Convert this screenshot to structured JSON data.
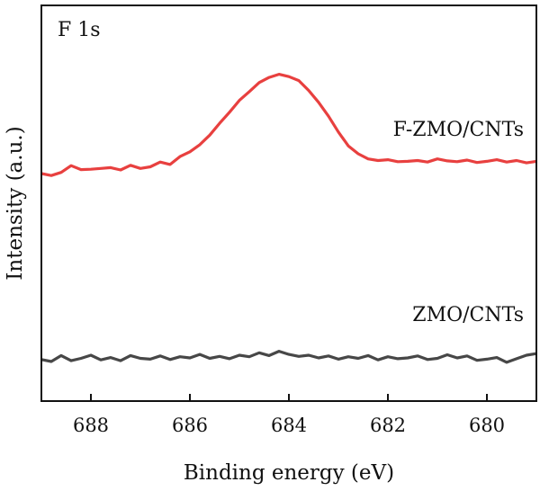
{
  "chart_data": {
    "type": "line",
    "title": "",
    "panel_label": "F 1s",
    "xlabel": "Binding energy (eV)",
    "ylabel": "Intensity (a.u.)",
    "xlim": [
      689.0,
      679.0
    ],
    "x_reversed": true,
    "y_ticks_shown": false,
    "xticks": [
      688,
      686,
      684,
      682,
      680
    ],
    "xtick_labels": [
      "688",
      "686",
      "684",
      "682",
      "680"
    ],
    "ylim": [
      0,
      100
    ],
    "grid": false,
    "series": [
      {
        "name": "F-ZMO/CNTs",
        "color": "#e8403f",
        "x": [
          689.0,
          688.8,
          688.6,
          688.4,
          688.2,
          688.0,
          687.8,
          687.6,
          687.4,
          687.2,
          687.0,
          686.8,
          686.6,
          686.4,
          686.2,
          686.0,
          685.8,
          685.6,
          685.4,
          685.2,
          685.0,
          684.8,
          684.6,
          684.4,
          684.2,
          684.0,
          683.8,
          683.6,
          683.4,
          683.2,
          683.0,
          682.8,
          682.6,
          682.4,
          682.2,
          682.0,
          681.8,
          681.6,
          681.4,
          681.2,
          681.0,
          680.8,
          680.6,
          680.4,
          680.2,
          680.0,
          679.8,
          679.6,
          679.4,
          679.2,
          679.0
        ],
        "values": [
          57.5,
          57.0,
          57.8,
          59.5,
          58.5,
          58.6,
          58.8,
          59.0,
          58.4,
          59.6,
          58.8,
          59.2,
          60.4,
          59.8,
          61.8,
          63.0,
          64.8,
          67.2,
          70.2,
          73.0,
          76.0,
          78.2,
          80.5,
          81.8,
          82.6,
          82.0,
          81.0,
          78.5,
          75.5,
          72.0,
          68.0,
          64.5,
          62.5,
          61.2,
          60.8,
          61.0,
          60.5,
          60.6,
          60.8,
          60.4,
          61.2,
          60.7,
          60.5,
          60.9,
          60.3,
          60.6,
          61.0,
          60.4,
          60.8,
          60.2,
          60.6
        ]
      },
      {
        "name": "ZMO/CNTs",
        "color": "#474747",
        "x": [
          689.0,
          688.8,
          688.6,
          688.4,
          688.2,
          688.0,
          687.8,
          687.6,
          687.4,
          687.2,
          687.0,
          686.8,
          686.6,
          686.4,
          686.2,
          686.0,
          685.8,
          685.6,
          685.4,
          685.2,
          685.0,
          684.8,
          684.6,
          684.4,
          684.2,
          684.0,
          683.8,
          683.6,
          683.4,
          683.2,
          683.0,
          682.8,
          682.6,
          682.4,
          682.2,
          682.0,
          681.8,
          681.6,
          681.4,
          681.2,
          681.0,
          680.8,
          680.6,
          680.4,
          680.2,
          680.0,
          679.8,
          679.6,
          679.4,
          679.2,
          679.0
        ],
        "values": [
          10.5,
          10.0,
          11.5,
          10.2,
          10.8,
          11.6,
          10.4,
          11.0,
          10.2,
          11.5,
          10.8,
          10.6,
          11.4,
          10.5,
          11.2,
          10.9,
          11.8,
          10.8,
          11.3,
          10.7,
          11.6,
          11.2,
          12.2,
          11.5,
          12.6,
          11.8,
          11.3,
          11.6,
          10.9,
          11.4,
          10.6,
          11.2,
          10.8,
          11.5,
          10.4,
          11.2,
          10.7,
          10.9,
          11.4,
          10.5,
          10.8,
          11.7,
          10.9,
          11.4,
          10.3,
          10.6,
          11.0,
          9.8,
          10.7,
          11.6,
          12.0
        ]
      }
    ]
  }
}
